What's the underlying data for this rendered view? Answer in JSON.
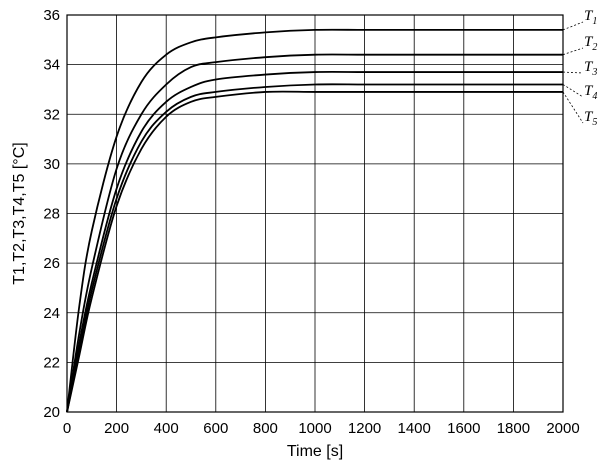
{
  "chart_data": {
    "type": "line",
    "title": "",
    "xlabel": "Time [s]",
    "ylabel": "T1,T2,T3,T4,T5 [°C]",
    "xlim": [
      0,
      2000
    ],
    "ylim": [
      20,
      36
    ],
    "xticks": [
      0,
      200,
      400,
      600,
      800,
      1000,
      1200,
      1400,
      1600,
      1800,
      2000
    ],
    "yticks": [
      20,
      22,
      24,
      26,
      28,
      30,
      32,
      34,
      36
    ],
    "grid": true,
    "legend": "labels at right end of lines",
    "line_color": "#000000",
    "x": [
      0,
      50,
      100,
      200,
      300,
      400,
      500,
      600,
      800,
      1000,
      1200,
      1400,
      1600,
      1800,
      2000
    ],
    "series": [
      {
        "name": "T",
        "sub": "1",
        "values": [
          20.0,
          24.3,
          27.3,
          31.1,
          33.3,
          34.4,
          34.9,
          35.1,
          35.3,
          35.4,
          35.4,
          35.4,
          35.4,
          35.4,
          35.4
        ]
      },
      {
        "name": "T",
        "sub": "2",
        "values": [
          20.0,
          23.2,
          25.8,
          29.8,
          32.0,
          33.2,
          33.9,
          34.1,
          34.3,
          34.4,
          34.4,
          34.4,
          34.4,
          34.4,
          34.4
        ]
      },
      {
        "name": "T",
        "sub": "3",
        "values": [
          20.0,
          22.8,
          25.2,
          29.0,
          31.3,
          32.5,
          33.1,
          33.4,
          33.6,
          33.7,
          33.7,
          33.7,
          33.7,
          33.7,
          33.7
        ]
      },
      {
        "name": "T",
        "sub": "4",
        "values": [
          20.0,
          22.5,
          24.9,
          28.6,
          30.9,
          32.1,
          32.7,
          32.9,
          33.1,
          33.2,
          33.2,
          33.2,
          33.2,
          33.2,
          33.2
        ]
      },
      {
        "name": "T",
        "sub": "5",
        "values": [
          20.0,
          22.3,
          24.6,
          28.3,
          30.6,
          31.9,
          32.5,
          32.7,
          32.9,
          32.9,
          32.9,
          32.9,
          32.9,
          32.9,
          32.9
        ]
      }
    ]
  }
}
